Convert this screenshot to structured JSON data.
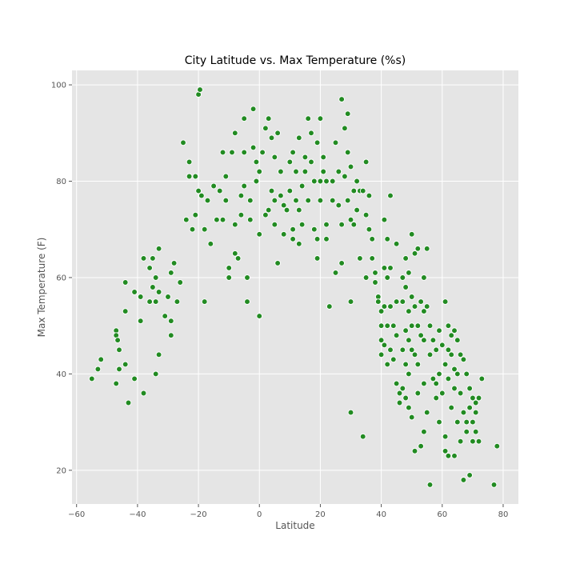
{
  "chart_data": {
    "type": "scatter",
    "title": "City Latitude vs. Max Temperature (%s)",
    "xlabel": "Latitude",
    "ylabel": "Max Temperature (F)",
    "xlim": [
      -61.5,
      85
    ],
    "ylim": [
      13,
      103
    ],
    "xticks": [
      -60,
      -40,
      -20,
      0,
      20,
      40,
      60,
      80
    ],
    "yticks": [
      20,
      40,
      60,
      80,
      100
    ],
    "grid": true,
    "background_color": "#E5E5E5",
    "grid_color": "#FFFFFF",
    "point_color": "#228B22",
    "point_edge_color": "#FFFFFF",
    "series": [
      {
        "points": [
          [
            -55,
            39
          ],
          [
            -53,
            41
          ],
          [
            -52,
            43
          ],
          [
            -47,
            49
          ],
          [
            -47,
            48
          ],
          [
            -46.5,
            47
          ],
          [
            -46,
            45
          ],
          [
            -46,
            41
          ],
          [
            -47,
            38
          ],
          [
            -44,
            59
          ],
          [
            -44,
            53
          ],
          [
            -44,
            42
          ],
          [
            -43,
            34
          ],
          [
            -41,
            39
          ],
          [
            -41,
            57
          ],
          [
            -39,
            56
          ],
          [
            -38,
            64
          ],
          [
            -39,
            51
          ],
          [
            -38,
            36
          ],
          [
            -36,
            62
          ],
          [
            -36,
            55
          ],
          [
            -35,
            64
          ],
          [
            -35,
            58
          ],
          [
            -34,
            60
          ],
          [
            -34,
            55
          ],
          [
            -34,
            40
          ],
          [
            -33,
            66
          ],
          [
            -33,
            44
          ],
          [
            -33,
            57
          ],
          [
            -31,
            52
          ],
          [
            -30,
            56
          ],
          [
            -29,
            48
          ],
          [
            -29,
            51
          ],
          [
            -29,
            61
          ],
          [
            -28,
            63
          ],
          [
            -27,
            55
          ],
          [
            -26,
            59
          ],
          [
            -25,
            88
          ],
          [
            -24,
            72
          ],
          [
            -23,
            84
          ],
          [
            -23,
            81
          ],
          [
            -22,
            70
          ],
          [
            -21,
            73
          ],
          [
            -21,
            81
          ],
          [
            -20,
            78
          ],
          [
            -20,
            98
          ],
          [
            -19.5,
            99
          ],
          [
            -19,
            77
          ],
          [
            -18,
            55
          ],
          [
            -18,
            70
          ],
          [
            -17,
            76
          ],
          [
            -16,
            67
          ],
          [
            -15,
            79
          ],
          [
            -14,
            72
          ],
          [
            -13,
            78
          ],
          [
            -12,
            86
          ],
          [
            -12,
            72
          ],
          [
            -11,
            81
          ],
          [
            -11,
            76
          ],
          [
            -10,
            60
          ],
          [
            -10,
            62
          ],
          [
            -9,
            86
          ],
          [
            -8,
            90
          ],
          [
            -8,
            71
          ],
          [
            -8,
            65
          ],
          [
            -7,
            64
          ],
          [
            -6,
            77
          ],
          [
            -6,
            73
          ],
          [
            -5,
            93
          ],
          [
            -5,
            86
          ],
          [
            -5,
            79
          ],
          [
            -4,
            55
          ],
          [
            -4,
            60
          ],
          [
            -3,
            76
          ],
          [
            -3,
            72
          ],
          [
            -2,
            95
          ],
          [
            -2,
            87
          ],
          [
            -1,
            84
          ],
          [
            -1,
            80
          ],
          [
            0,
            82
          ],
          [
            0,
            69
          ],
          [
            0,
            52
          ],
          [
            1,
            86
          ],
          [
            2,
            91
          ],
          [
            2,
            73
          ],
          [
            3,
            74
          ],
          [
            3,
            93
          ],
          [
            4,
            78
          ],
          [
            4,
            89
          ],
          [
            5,
            85
          ],
          [
            5,
            76
          ],
          [
            5,
            71
          ],
          [
            6,
            90
          ],
          [
            6,
            63
          ],
          [
            7,
            82
          ],
          [
            7,
            77
          ],
          [
            8,
            75
          ],
          [
            8,
            69
          ],
          [
            9,
            74
          ],
          [
            10,
            84
          ],
          [
            10,
            78
          ],
          [
            11,
            86
          ],
          [
            11,
            70
          ],
          [
            11,
            68
          ],
          [
            12,
            82
          ],
          [
            12,
            76
          ],
          [
            13,
            89
          ],
          [
            13,
            74
          ],
          [
            13,
            67
          ],
          [
            14,
            79
          ],
          [
            14,
            71
          ],
          [
            15,
            85
          ],
          [
            15,
            82
          ],
          [
            16,
            93
          ],
          [
            16,
            76
          ],
          [
            17,
            90
          ],
          [
            17,
            84
          ],
          [
            18,
            80
          ],
          [
            18,
            70
          ],
          [
            19,
            88
          ],
          [
            19,
            64
          ],
          [
            19,
            68
          ],
          [
            20,
            93
          ],
          [
            20,
            80
          ],
          [
            20,
            76
          ],
          [
            21,
            82
          ],
          [
            21,
            85
          ],
          [
            22,
            80
          ],
          [
            22,
            71
          ],
          [
            22,
            68
          ],
          [
            23,
            54
          ],
          [
            24,
            80
          ],
          [
            24,
            76
          ],
          [
            25,
            88
          ],
          [
            25,
            61
          ],
          [
            26,
            82
          ],
          [
            26,
            75
          ],
          [
            27,
            97
          ],
          [
            27,
            71
          ],
          [
            27,
            63
          ],
          [
            28,
            91
          ],
          [
            28,
            81
          ],
          [
            29,
            94
          ],
          [
            29,
            86
          ],
          [
            29,
            76
          ],
          [
            30,
            55
          ],
          [
            30,
            83
          ],
          [
            30,
            72
          ],
          [
            30,
            32
          ],
          [
            31,
            78
          ],
          [
            31,
            71
          ],
          [
            32,
            80
          ],
          [
            32,
            74
          ],
          [
            33,
            64
          ],
          [
            33,
            78
          ],
          [
            34,
            27
          ],
          [
            34,
            78
          ],
          [
            35,
            84
          ],
          [
            35,
            73
          ],
          [
            35,
            60
          ],
          [
            36,
            77
          ],
          [
            36,
            70
          ],
          [
            37,
            64
          ],
          [
            37,
            68
          ],
          [
            38,
            61
          ],
          [
            38,
            59
          ],
          [
            39,
            56
          ],
          [
            39,
            55
          ],
          [
            40,
            53
          ],
          [
            40,
            50
          ],
          [
            40,
            47
          ],
          [
            40,
            44
          ],
          [
            41,
            72
          ],
          [
            41,
            62
          ],
          [
            41,
            54
          ],
          [
            41,
            46
          ],
          [
            42,
            68
          ],
          [
            42,
            60
          ],
          [
            42,
            50
          ],
          [
            42,
            42
          ],
          [
            43,
            77
          ],
          [
            43,
            62
          ],
          [
            43,
            54
          ],
          [
            43,
            45
          ],
          [
            44,
            50
          ],
          [
            44,
            43
          ],
          [
            45,
            67
          ],
          [
            45,
            55
          ],
          [
            45,
            48
          ],
          [
            45,
            38
          ],
          [
            46,
            36
          ],
          [
            46,
            34
          ],
          [
            47,
            60
          ],
          [
            47,
            55
          ],
          [
            47,
            45
          ],
          [
            47,
            37
          ],
          [
            48,
            64
          ],
          [
            48,
            58
          ],
          [
            48,
            49
          ],
          [
            48,
            42
          ],
          [
            48,
            35
          ],
          [
            49,
            61
          ],
          [
            49,
            53
          ],
          [
            49,
            47
          ],
          [
            49,
            40
          ],
          [
            49,
            33
          ],
          [
            50,
            69
          ],
          [
            50,
            56
          ],
          [
            50,
            50
          ],
          [
            50,
            45
          ],
          [
            50,
            31
          ],
          [
            51,
            65
          ],
          [
            51,
            54
          ],
          [
            51,
            44
          ],
          [
            51,
            24
          ],
          [
            52,
            66
          ],
          [
            52,
            50
          ],
          [
            52,
            42
          ],
          [
            52,
            36
          ],
          [
            53,
            55
          ],
          [
            53,
            48
          ],
          [
            53,
            25
          ],
          [
            54,
            60
          ],
          [
            54,
            53
          ],
          [
            54,
            47
          ],
          [
            54,
            38
          ],
          [
            54,
            28
          ],
          [
            55,
            66
          ],
          [
            55,
            54
          ],
          [
            55,
            32
          ],
          [
            56,
            50
          ],
          [
            56,
            44
          ],
          [
            56,
            17
          ],
          [
            57,
            47
          ],
          [
            57,
            39
          ],
          [
            58,
            45
          ],
          [
            58,
            38
          ],
          [
            58,
            35
          ],
          [
            59,
            49
          ],
          [
            59,
            40
          ],
          [
            59,
            30
          ],
          [
            60,
            46
          ],
          [
            60,
            36
          ],
          [
            61,
            55
          ],
          [
            61,
            42
          ],
          [
            61,
            27
          ],
          [
            61,
            24
          ],
          [
            62,
            50
          ],
          [
            62,
            45
          ],
          [
            62,
            39
          ],
          [
            62,
            23
          ],
          [
            63,
            48
          ],
          [
            63,
            44
          ],
          [
            63,
            33
          ],
          [
            64,
            49
          ],
          [
            64,
            41
          ],
          [
            64,
            37
          ],
          [
            64,
            23
          ],
          [
            65,
            47
          ],
          [
            65,
            40
          ],
          [
            65,
            30
          ],
          [
            66,
            44
          ],
          [
            66,
            36
          ],
          [
            66,
            26
          ],
          [
            67,
            43
          ],
          [
            67,
            32
          ],
          [
            67,
            18
          ],
          [
            68,
            40
          ],
          [
            68,
            30
          ],
          [
            68,
            28
          ],
          [
            69,
            37
          ],
          [
            69,
            33
          ],
          [
            69,
            19
          ],
          [
            70,
            35
          ],
          [
            70,
            30
          ],
          [
            70,
            26
          ],
          [
            71,
            34
          ],
          [
            71,
            32
          ],
          [
            71,
            28
          ],
          [
            72,
            35
          ],
          [
            72,
            26
          ],
          [
            73,
            39
          ],
          [
            77,
            17
          ],
          [
            78,
            25
          ]
        ]
      }
    ]
  }
}
